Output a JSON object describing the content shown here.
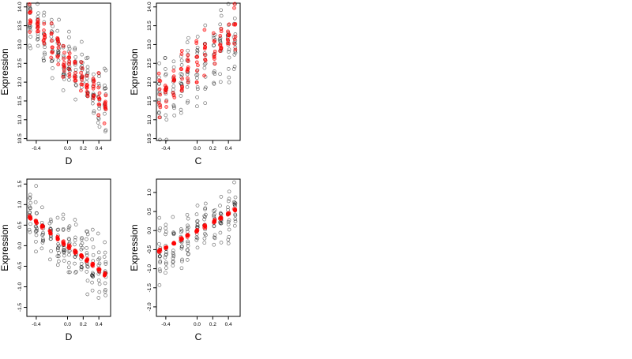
{
  "chart_data": [
    {
      "type": "scatter",
      "xlabel": "D",
      "ylabel": "Expression",
      "xlim": [
        -0.52,
        0.55
      ],
      "ylim": [
        10.45,
        14.1
      ],
      "xticks": [
        -0.4,
        0.0,
        0.2,
        0.4
      ],
      "xtick_labels": [
        "-0.4",
        "0.0",
        "0.2",
        "0.4"
      ],
      "yticks": [
        10.5,
        11.0,
        11.5,
        12.0,
        12.5,
        13.0,
        13.5,
        14.0
      ],
      "ytick_labels": [
        "10.5",
        "11.0",
        "11.5",
        "12.0",
        "12.5",
        "13.0",
        "13.5",
        "14.0"
      ],
      "columns": [
        -0.48,
        -0.38,
        -0.3,
        -0.2,
        -0.12,
        -0.05,
        0.02,
        0.1,
        0.18,
        0.25,
        0.33,
        0.4,
        0.48
      ],
      "observed": {
        "color": "#000000",
        "intercept": 12.55,
        "slope": -2.1,
        "spread": 0.55,
        "per_column": 14
      },
      "fitted": {
        "color": "#ff0000",
        "intercept": 12.55,
        "slope": -2.4,
        "spread": 0.35,
        "per_column": 9
      }
    },
    {
      "type": "scatter",
      "xlabel": "C",
      "ylabel": "Expression",
      "xlim": [
        -0.52,
        0.55
      ],
      "ylim": [
        10.45,
        14.1
      ],
      "xticks": [
        -0.4,
        0.0,
        0.2,
        0.4
      ],
      "xtick_labels": [
        "-0.4",
        "0.0",
        "0.2",
        "0.4"
      ],
      "yticks": [
        10.5,
        11.0,
        11.5,
        12.0,
        12.5,
        13.0,
        13.5,
        14.0
      ],
      "ytick_labels": [
        "10.5",
        "11.0",
        "11.5",
        "12.0",
        "12.5",
        "13.0",
        "13.5",
        "14.0"
      ],
      "columns": [
        -0.48,
        -0.4,
        -0.3,
        -0.2,
        -0.12,
        0.0,
        0.1,
        0.22,
        0.3,
        0.4,
        0.48
      ],
      "observed": {
        "color": "#000000",
        "intercept": 12.4,
        "slope": 1.6,
        "spread": 0.75,
        "per_column": 14
      },
      "fitted": {
        "color": "#ff0000",
        "intercept": 12.45,
        "slope": 1.8,
        "spread": 0.45,
        "per_column": 9
      }
    },
    {
      "type": "scatter",
      "xlabel": "D",
      "ylabel": "Expression",
      "xlim": [
        -0.52,
        0.55
      ],
      "ylim": [
        -1.72,
        1.62
      ],
      "xticks": [
        -0.4,
        0.0,
        0.2,
        0.4
      ],
      "xtick_labels": [
        "-0.4",
        "0.0",
        "0.2",
        "0.4"
      ],
      "yticks": [
        -1.5,
        -1.0,
        -0.5,
        0.0,
        0.5,
        1.0,
        1.5
      ],
      "ytick_labels": [
        "-1.5",
        "-1.0",
        "-0.5",
        "0.0",
        "0.5",
        "1.0",
        "1.5"
      ],
      "columns": [
        -0.48,
        -0.4,
        -0.32,
        -0.22,
        -0.12,
        -0.05,
        0.02,
        0.1,
        0.18,
        0.25,
        0.32,
        0.4,
        0.48
      ],
      "observed": {
        "color": "#000000",
        "intercept": 0.0,
        "slope": -1.45,
        "spread": 0.5,
        "per_column": 14
      },
      "fitted": {
        "color": "#ff0000",
        "intercept": 0.0,
        "slope": -1.45,
        "spread": 0.03,
        "per_column": 7
      }
    },
    {
      "type": "scatter",
      "xlabel": "C",
      "ylabel": "Expression",
      "xlim": [
        -0.52,
        0.55
      ],
      "ylim": [
        -2.25,
        1.35
      ],
      "xticks": [
        -0.4,
        0.0,
        0.2,
        0.4
      ],
      "xtick_labels": [
        "-0.4",
        "0.0",
        "0.2",
        "0.4"
      ],
      "yticks": [
        -2.0,
        -1.5,
        -1.0,
        -0.5,
        0.0,
        0.5,
        1.0
      ],
      "ytick_labels": [
        "-2.0",
        "-1.5",
        "-1.0",
        "-0.5",
        "0.0",
        "0.5",
        "1.0"
      ],
      "columns": [
        -0.48,
        -0.4,
        -0.3,
        -0.2,
        -0.12,
        0.0,
        0.1,
        0.22,
        0.3,
        0.4,
        0.48
      ],
      "observed": {
        "color": "#000000",
        "intercept": 0.0,
        "slope": 1.1,
        "spread": 0.55,
        "per_column": 14
      },
      "fitted": {
        "color": "#ff0000",
        "intercept": 0.0,
        "slope": 1.1,
        "spread": 0.03,
        "per_column": 7
      }
    }
  ]
}
